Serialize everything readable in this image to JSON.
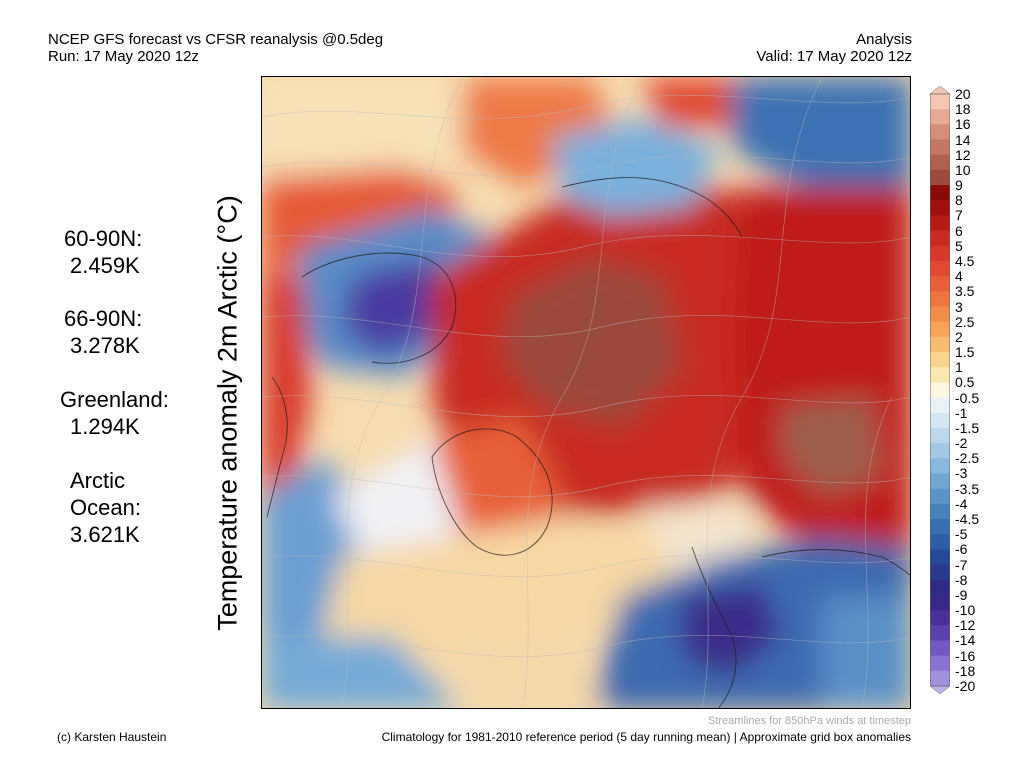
{
  "header": {
    "title_line1": "NCEP GFS forecast vs CFSR reanalysis @0.5deg",
    "title_line2": "Run: 17 May 2020 12z",
    "right_line1": "Analysis",
    "right_line2": "Valid: 17 May 2020 12z"
  },
  "stats": [
    {
      "region": "60-90N:",
      "value": "2.459K"
    },
    {
      "region": "66-90N:",
      "value": "3.278K"
    },
    {
      "region": "Greenland:",
      "value": "1.294K"
    },
    {
      "region_line1": "Arctic",
      "region_line2": "Ocean:",
      "value": "3.621K"
    }
  ],
  "vertical_title": "Temperature anomaly 2m Arctic (°C)",
  "colorbar": {
    "labels": [
      "20",
      "18",
      "16",
      "14",
      "12",
      "10",
      "9",
      "8",
      "7",
      "6",
      "5",
      "4.5",
      "4",
      "3.5",
      "3",
      "2.5",
      "2",
      "1.5",
      "1",
      "0.5",
      "-0.5",
      "-1",
      "-1.5",
      "-2",
      "-2.5",
      "-3",
      "-3.5",
      "-4",
      "-4.5",
      "-5",
      "-6",
      "-7",
      "-8",
      "-9",
      "-10",
      "-12",
      "-14",
      "-16",
      "-18",
      "-20"
    ],
    "colors": [
      "#f3c7b2",
      "#e6aa94",
      "#d58e79",
      "#c47762",
      "#b0604e",
      "#9c4a3c",
      "#8b0a0a",
      "#a00f0f",
      "#b81a18",
      "#c92a22",
      "#d8382a",
      "#e04a30",
      "#e85e38",
      "#ee7440",
      "#f28c4a",
      "#f6a45a",
      "#f8bc70",
      "#fad48c",
      "#fce8b0",
      "#fdf6e0",
      "#eaf2f8",
      "#d4e6f2",
      "#bcd8ec",
      "#a2c8e4",
      "#88b8dc",
      "#70a6d2",
      "#5a94c8",
      "#4682bc",
      "#3670b0",
      "#2c5ea6",
      "#264a9a",
      "#2a3a8c",
      "#2e2c82",
      "#3a2888",
      "#4a3098",
      "#5c40ac",
      "#7258c0",
      "#8a72d0",
      "#a290de",
      "#c0b0ea"
    ]
  },
  "notes": {
    "streamlines": "Streamlines for 850hPa winds at timestep",
    "author": "(c) Karsten Haustein",
    "climatology": "Climatology for 1981-2010 reference period (5 day running mean) | Approximate grid box anomalies"
  }
}
